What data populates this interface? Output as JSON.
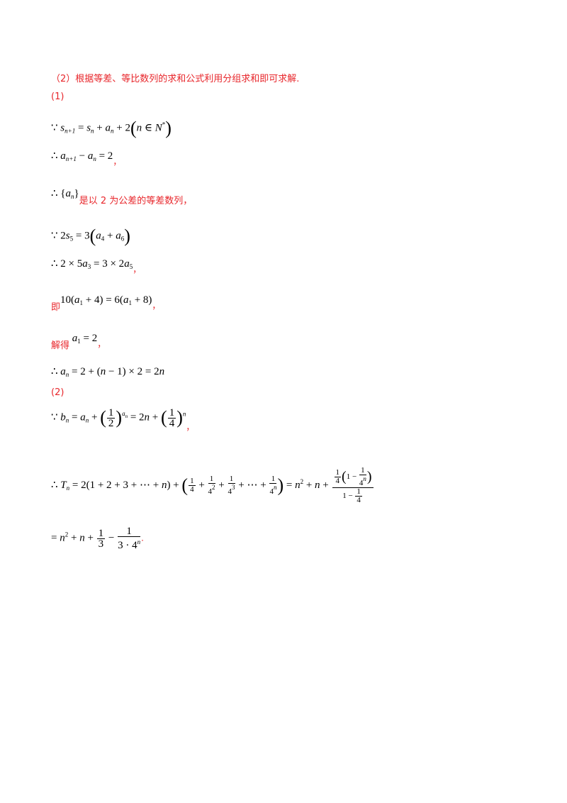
{
  "intro": "（2）根据等差、等比数列的求和公式利用分组求和即可求解.",
  "part1_label": "(1)",
  "part2_label": "(2)",
  "comma": "，",
  "period": ".",
  "text_arith": "是以 2 为公差的等差数列，",
  "text_ji": "即",
  "text_jiede": "解得",
  "colors": {
    "accent": "#e8262b",
    "text": "#000000"
  }
}
